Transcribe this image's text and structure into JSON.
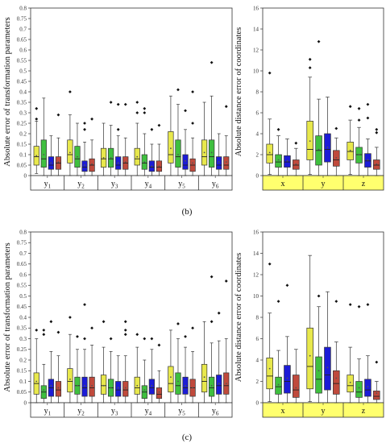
{
  "panel_labels": {
    "b": "(b)",
    "c": "(c)"
  },
  "colors": {
    "yellow": "#e8e84c",
    "green": "#3fbf3f",
    "blue": "#1c1cd6",
    "red": "#c04a3c",
    "strip_param": "#ffffff",
    "strip_coord": "#ffff6e"
  },
  "chart_data": [
    {
      "id": "b_param",
      "type": "box",
      "ylabel": "Absolute error of transformation parameters",
      "ylim": [
        0,
        0.8
      ],
      "yticks": [
        "0",
        "0.05",
        "0.1",
        "0.15",
        "0.2",
        "0.25",
        "0.3",
        "0.35",
        "0.4",
        "0.45",
        "0.5",
        "0.55",
        "0.6",
        "0.65",
        "0.7",
        "0.75",
        "0.8"
      ],
      "categories": [
        "y1",
        "y2",
        "y3",
        "y4",
        "y5",
        "y6"
      ],
      "cat_main": [
        "y",
        "y",
        "y",
        "y",
        "y",
        "y"
      ],
      "cat_sub": [
        "1",
        "2",
        "3",
        "4",
        "5",
        "6"
      ],
      "box_colors": [
        "yellow",
        "green",
        "blue",
        "red"
      ],
      "boxes": [
        {
          "q1": 0.05,
          "med": 0.09,
          "q3": 0.14,
          "lo": 0.01,
          "hi": 0.26,
          "mean": 0.095,
          "out": [
            0.32,
            0.27
          ]
        },
        {
          "q1": 0.04,
          "med": 0.08,
          "q3": 0.17,
          "lo": 0.0,
          "hi": 0.37,
          "mean": 0.1,
          "out": []
        },
        {
          "q1": 0.03,
          "med": 0.05,
          "q3": 0.09,
          "lo": 0.0,
          "hi": 0.19,
          "mean": 0.06,
          "out": []
        },
        {
          "q1": 0.03,
          "med": 0.06,
          "q3": 0.09,
          "lo": 0.0,
          "hi": 0.18,
          "mean": 0.065,
          "out": [
            0.29
          ]
        },
        {
          "q1": 0.06,
          "med": 0.1,
          "q3": 0.17,
          "lo": 0.0,
          "hi": 0.29,
          "mean": 0.11,
          "out": [
            0.4
          ]
        },
        {
          "q1": 0.04,
          "med": 0.08,
          "q3": 0.14,
          "lo": 0.0,
          "hi": 0.25,
          "mean": 0.09,
          "out": []
        },
        {
          "q1": 0.02,
          "med": 0.04,
          "q3": 0.07,
          "lo": 0.0,
          "hi": 0.16,
          "mean": 0.05,
          "out": [
            0.22,
            0.25
          ]
        },
        {
          "q1": 0.02,
          "med": 0.05,
          "q3": 0.08,
          "lo": 0.0,
          "hi": 0.17,
          "mean": 0.055,
          "out": [
            0.27
          ]
        },
        {
          "q1": 0.04,
          "med": 0.08,
          "q3": 0.13,
          "lo": 0.0,
          "hi": 0.25,
          "mean": 0.085,
          "out": []
        },
        {
          "q1": 0.04,
          "med": 0.08,
          "q3": 0.13,
          "lo": 0.0,
          "hi": 0.24,
          "mean": 0.085,
          "out": [
            0.35
          ]
        },
        {
          "q1": 0.03,
          "med": 0.05,
          "q3": 0.09,
          "lo": 0.0,
          "hi": 0.19,
          "mean": 0.06,
          "out": [
            0.22,
            0.34
          ]
        },
        {
          "q1": 0.03,
          "med": 0.06,
          "q3": 0.09,
          "lo": 0.0,
          "hi": 0.18,
          "mean": 0.065,
          "out": [
            0.34
          ]
        },
        {
          "q1": 0.05,
          "med": 0.08,
          "q3": 0.13,
          "lo": 0.0,
          "hi": 0.25,
          "mean": 0.09,
          "out": [
            0.3,
            0.35
          ]
        },
        {
          "q1": 0.03,
          "med": 0.06,
          "q3": 0.1,
          "lo": 0.0,
          "hi": 0.2,
          "mean": 0.065,
          "out": [
            0.3,
            0.32
          ]
        },
        {
          "q1": 0.02,
          "med": 0.04,
          "q3": 0.07,
          "lo": 0.0,
          "hi": 0.15,
          "mean": 0.045,
          "out": [
            0.22
          ]
        },
        {
          "q1": 0.02,
          "med": 0.04,
          "q3": 0.07,
          "lo": 0.0,
          "hi": 0.15,
          "mean": 0.045,
          "out": [
            0.24
          ]
        },
        {
          "q1": 0.06,
          "med": 0.1,
          "q3": 0.21,
          "lo": 0.0,
          "hi": 0.38,
          "mean": 0.13,
          "out": []
        },
        {
          "q1": 0.04,
          "med": 0.09,
          "q3": 0.17,
          "lo": 0.0,
          "hi": 0.34,
          "mean": 0.1,
          "out": [
            0.41
          ]
        },
        {
          "q1": 0.03,
          "med": 0.05,
          "q3": 0.1,
          "lo": 0.0,
          "hi": 0.22,
          "mean": 0.07,
          "out": [
            0.31
          ]
        },
        {
          "q1": 0.02,
          "med": 0.05,
          "q3": 0.08,
          "lo": 0.0,
          "hi": 0.18,
          "mean": 0.06,
          "out": [
            0.25,
            0.4
          ]
        },
        {
          "q1": 0.05,
          "med": 0.09,
          "q3": 0.17,
          "lo": 0.0,
          "hi": 0.35,
          "mean": 0.11,
          "out": []
        },
        {
          "q1": 0.04,
          "med": 0.09,
          "q3": 0.17,
          "lo": 0.0,
          "hi": 0.38,
          "mean": 0.11,
          "out": [
            0.54
          ]
        },
        {
          "q1": 0.03,
          "med": 0.05,
          "q3": 0.09,
          "lo": 0.0,
          "hi": 0.2,
          "mean": 0.065,
          "out": []
        },
        {
          "q1": 0.03,
          "med": 0.05,
          "q3": 0.09,
          "lo": 0.0,
          "hi": 0.19,
          "mean": 0.065,
          "out": [
            0.33
          ]
        }
      ]
    },
    {
      "id": "b_coord",
      "type": "box",
      "ylabel": "Absolute distance error of coordinates",
      "ylim": [
        0,
        16
      ],
      "yticks": [
        "0",
        "2",
        "4",
        "6",
        "8",
        "10",
        "12",
        "14",
        "16"
      ],
      "categories": [
        "x",
        "y",
        "z"
      ],
      "cat_main": [
        "x",
        "y",
        "z"
      ],
      "cat_sub": [
        "",
        "",
        ""
      ],
      "box_colors": [
        "yellow",
        "green",
        "blue",
        "red"
      ],
      "boxes": [
        {
          "q1": 1.2,
          "med": 2.0,
          "q3": 3.0,
          "lo": 0.1,
          "hi": 5.4,
          "mean": 2.2,
          "out": [
            9.8
          ]
        },
        {
          "q1": 0.8,
          "med": 1.3,
          "q3": 2.0,
          "lo": 0.0,
          "hi": 3.8,
          "mean": 1.5,
          "out": [
            4.4
          ]
        },
        {
          "q1": 0.8,
          "med": 1.3,
          "q3": 1.9,
          "lo": 0.0,
          "hi": 3.5,
          "mean": 1.4,
          "out": []
        },
        {
          "q1": 0.6,
          "med": 1.0,
          "q3": 1.5,
          "lo": 0.0,
          "hi": 2.6,
          "mean": 1.1,
          "out": [
            3.1
          ]
        },
        {
          "q1": 1.5,
          "med": 2.5,
          "q3": 5.2,
          "lo": 0.1,
          "hi": 9.4,
          "mean": 3.3,
          "out": [
            11.1,
            10.3
          ]
        },
        {
          "q1": 1.0,
          "med": 2.4,
          "q3": 3.8,
          "lo": 0.0,
          "hi": 7.3,
          "mean": 2.5,
          "out": [
            12.8
          ]
        },
        {
          "q1": 1.3,
          "med": 2.5,
          "q3": 4.0,
          "lo": 0.0,
          "hi": 7.5,
          "mean": 2.7,
          "out": []
        },
        {
          "q1": 0.9,
          "med": 1.5,
          "q3": 2.4,
          "lo": 0.0,
          "hi": 3.6,
          "mean": 1.7,
          "out": [
            4.5
          ]
        },
        {
          "q1": 1.5,
          "med": 2.3,
          "q3": 3.2,
          "lo": 0.1,
          "hi": 5.3,
          "mean": 2.4,
          "out": [
            6.6
          ]
        },
        {
          "q1": 1.2,
          "med": 2.0,
          "q3": 2.7,
          "lo": 0.0,
          "hi": 4.6,
          "mean": 2.0,
          "out": [
            5.3,
            6.4
          ]
        },
        {
          "q1": 0.8,
          "med": 1.4,
          "q3": 2.1,
          "lo": 0.0,
          "hi": 3.5,
          "mean": 1.5,
          "out": [
            5.5,
            6.8
          ]
        },
        {
          "q1": 0.6,
          "med": 1.0,
          "q3": 1.5,
          "lo": 0.0,
          "hi": 2.7,
          "mean": 1.1,
          "out": [
            4.1,
            4.4
          ]
        }
      ]
    },
    {
      "id": "c_param",
      "type": "box",
      "ylabel": "Absolute error of transformation parameters",
      "ylim": [
        0,
        0.8
      ],
      "yticks": [
        "0",
        "0.05",
        "0.1",
        "0.15",
        "0.2",
        "0.25",
        "0.3",
        "0.35",
        "0.4",
        "0.45",
        "0.5",
        "0.55",
        "0.6",
        "0.65",
        "0.7",
        "0.75",
        "0.8"
      ],
      "categories": [
        "y1",
        "y2",
        "y3",
        "y4",
        "y5",
        "y6"
      ],
      "cat_main": [
        "y",
        "y",
        "y",
        "y",
        "y",
        "y"
      ],
      "cat_sub": [
        "1",
        "2",
        "3",
        "4",
        "5",
        "6"
      ],
      "box_colors": [
        "yellow",
        "green",
        "blue",
        "red"
      ],
      "boxes": [
        {
          "q1": 0.04,
          "med": 0.09,
          "q3": 0.14,
          "lo": 0.0,
          "hi": 0.3,
          "mean": 0.1,
          "out": [
            0.34
          ]
        },
        {
          "q1": 0.02,
          "med": 0.05,
          "q3": 0.08,
          "lo": 0.0,
          "hi": 0.18,
          "mean": 0.06,
          "out": [
            0.32,
            0.34
          ]
        },
        {
          "q1": 0.03,
          "med": 0.07,
          "q3": 0.11,
          "lo": 0.0,
          "hi": 0.24,
          "mean": 0.08,
          "out": [
            0.38
          ]
        },
        {
          "q1": 0.03,
          "med": 0.06,
          "q3": 0.1,
          "lo": 0.0,
          "hi": 0.22,
          "mean": 0.07,
          "out": [
            0.33
          ]
        },
        {
          "q1": 0.05,
          "med": 0.1,
          "q3": 0.16,
          "lo": 0.0,
          "hi": 0.32,
          "mean": 0.11,
          "out": [
            0.4
          ]
        },
        {
          "q1": 0.04,
          "med": 0.08,
          "q3": 0.12,
          "lo": 0.0,
          "hi": 0.25,
          "mean": 0.08,
          "out": [
            0.31
          ]
        },
        {
          "q1": 0.03,
          "med": 0.07,
          "q3": 0.12,
          "lo": 0.0,
          "hi": 0.25,
          "mean": 0.08,
          "out": [
            0.3,
            0.46
          ]
        },
        {
          "q1": 0.03,
          "med": 0.07,
          "q3": 0.12,
          "lo": 0.0,
          "hi": 0.27,
          "mean": 0.08,
          "out": [
            0.35
          ]
        },
        {
          "q1": 0.04,
          "med": 0.08,
          "q3": 0.13,
          "lo": 0.0,
          "hi": 0.26,
          "mean": 0.08,
          "out": [
            0.38
          ]
        },
        {
          "q1": 0.03,
          "med": 0.07,
          "q3": 0.11,
          "lo": 0.0,
          "hi": 0.24,
          "mean": 0.07,
          "out": [
            0.3
          ]
        },
        {
          "q1": 0.03,
          "med": 0.06,
          "q3": 0.1,
          "lo": 0.0,
          "hi": 0.22,
          "mean": 0.07,
          "out": []
        },
        {
          "q1": 0.03,
          "med": 0.06,
          "q3": 0.1,
          "lo": 0.0,
          "hi": 0.22,
          "mean": 0.07,
          "out": [
            0.32,
            0.34,
            0.38
          ]
        },
        {
          "q1": 0.04,
          "med": 0.07,
          "q3": 0.12,
          "lo": 0.0,
          "hi": 0.26,
          "mean": 0.08,
          "out": [
            0.32
          ]
        },
        {
          "q1": 0.02,
          "med": 0.05,
          "q3": 0.08,
          "lo": 0.0,
          "hi": 0.2,
          "mean": 0.06,
          "out": [
            0.3
          ]
        },
        {
          "q1": 0.04,
          "med": 0.07,
          "q3": 0.11,
          "lo": 0.0,
          "hi": 0.25,
          "mean": 0.08,
          "out": [
            0.3
          ]
        },
        {
          "q1": 0.02,
          "med": 0.04,
          "q3": 0.07,
          "lo": 0.0,
          "hi": 0.15,
          "mean": 0.05,
          "out": [
            0.27
          ]
        },
        {
          "q1": 0.05,
          "med": 0.09,
          "q3": 0.17,
          "lo": 0.0,
          "hi": 0.34,
          "mean": 0.12,
          "out": []
        },
        {
          "q1": 0.04,
          "med": 0.08,
          "q3": 0.14,
          "lo": 0.0,
          "hi": 0.3,
          "mean": 0.1,
          "out": [
            0.37
          ]
        },
        {
          "q1": 0.04,
          "med": 0.07,
          "q3": 0.12,
          "lo": 0.0,
          "hi": 0.26,
          "mean": 0.08,
          "out": [
            0.31
          ]
        },
        {
          "q1": 0.03,
          "med": 0.07,
          "q3": 0.11,
          "lo": 0.0,
          "hi": 0.24,
          "mean": 0.07,
          "out": [
            0.35
          ]
        },
        {
          "q1": 0.05,
          "med": 0.1,
          "q3": 0.18,
          "lo": 0.0,
          "hi": 0.38,
          "mean": 0.12,
          "out": []
        },
        {
          "q1": 0.03,
          "med": 0.07,
          "q3": 0.12,
          "lo": 0.0,
          "hi": 0.28,
          "mean": 0.08,
          "out": [
            0.38,
            0.59
          ]
        },
        {
          "q1": 0.04,
          "med": 0.08,
          "q3": 0.13,
          "lo": 0.0,
          "hi": 0.29,
          "mean": 0.09,
          "out": [
            0.42
          ]
        },
        {
          "q1": 0.04,
          "med": 0.08,
          "q3": 0.14,
          "lo": 0.0,
          "hi": 0.3,
          "mean": 0.09,
          "out": [
            0.57
          ]
        }
      ]
    },
    {
      "id": "c_coord",
      "type": "box",
      "ylabel": "Absolute distance error of coordinates",
      "ylim": [
        0,
        16
      ],
      "yticks": [
        "0",
        "2",
        "4",
        "6",
        "8",
        "10",
        "12",
        "14",
        "16"
      ],
      "categories": [
        "x",
        "y",
        "z"
      ],
      "cat_main": [
        "x",
        "y",
        "z"
      ],
      "cat_sub": [
        "",
        "",
        ""
      ],
      "box_colors": [
        "yellow",
        "green",
        "blue",
        "red"
      ],
      "boxes": [
        {
          "q1": 1.3,
          "med": 2.5,
          "q3": 4.2,
          "lo": 0.1,
          "hi": 8.4,
          "mean": 3.2,
          "out": [
            13.0
          ]
        },
        {
          "q1": 0.8,
          "med": 1.5,
          "q3": 2.4,
          "lo": 0.0,
          "hi": 4.9,
          "mean": 1.7,
          "out": [
            9.5
          ]
        },
        {
          "q1": 0.9,
          "med": 2.0,
          "q3": 3.5,
          "lo": 0.0,
          "hi": 6.2,
          "mean": 2.3,
          "out": [
            11.0
          ]
        },
        {
          "q1": 0.5,
          "med": 1.2,
          "q3": 2.6,
          "lo": 0.0,
          "hi": 5.0,
          "mean": 1.4,
          "out": []
        },
        {
          "q1": 1.3,
          "med": 3.4,
          "q3": 7.0,
          "lo": 0.1,
          "hi": 13.8,
          "mean": 4.4,
          "out": []
        },
        {
          "q1": 0.9,
          "med": 2.2,
          "q3": 4.3,
          "lo": 0.0,
          "hi": 9.0,
          "mean": 3.0,
          "out": [
            10.0
          ]
        },
        {
          "q1": 1.2,
          "med": 2.6,
          "q3": 5.2,
          "lo": 0.0,
          "hi": 10.4,
          "mean": 3.3,
          "out": []
        },
        {
          "q1": 0.8,
          "med": 1.8,
          "q3": 3.0,
          "lo": 0.0,
          "hi": 5.7,
          "mean": 2.3,
          "out": [
            9.5
          ]
        },
        {
          "q1": 1.0,
          "med": 1.6,
          "q3": 2.6,
          "lo": 0.0,
          "hi": 5.2,
          "mean": 1.9,
          "out": [
            9.2
          ]
        },
        {
          "q1": 0.5,
          "med": 1.0,
          "q3": 2.0,
          "lo": 0.0,
          "hi": 4.1,
          "mean": 1.4,
          "out": [
            9.0
          ]
        },
        {
          "q1": 0.6,
          "med": 1.2,
          "q3": 2.2,
          "lo": 0.0,
          "hi": 4.4,
          "mean": 1.5,
          "out": [
            9.2
          ]
        },
        {
          "q1": 0.3,
          "med": 0.6,
          "q3": 1.1,
          "lo": 0.0,
          "hi": 2.0,
          "mean": 0.9,
          "out": [
            3.8
          ]
        }
      ]
    }
  ]
}
